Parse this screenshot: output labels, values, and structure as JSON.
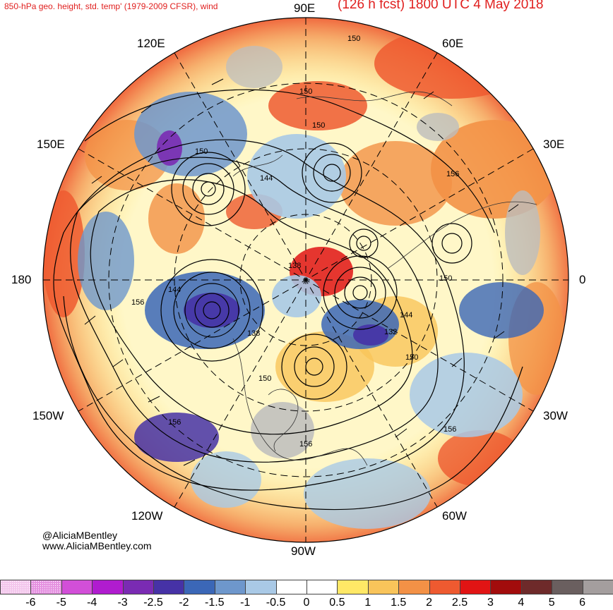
{
  "header": {
    "left_title": "850-hPa geo. height, std. temp' (1979-2009 CFSR), wind",
    "right_title": "(126 h fcst) 1800 UTC 4 May 2018"
  },
  "longitude_labels": {
    "n90e": "90E",
    "e60e": "60E",
    "e30e": "30E",
    "w0": "0",
    "w30w": "30W",
    "w60w": "60W",
    "s90w": "90W",
    "w120w": "120W",
    "w150w": "150W",
    "w180": "180",
    "w150e": "150E",
    "w120e": "120E"
  },
  "contour_labels": [
    "150",
    "150",
    "150",
    "150",
    "144",
    "144",
    "138",
    "138",
    "150",
    "156",
    "150",
    "144",
    "132",
    "150",
    "156",
    "156",
    "156",
    "156"
  ],
  "credits": {
    "handle": "@AliciaMBentley",
    "website": "www.AliciaMBentley.com"
  },
  "colorbar": {
    "ticks": [
      "-6",
      "-5",
      "-4",
      "-3",
      "-2.5",
      "-2",
      "-1.5",
      "-1",
      "-0.5",
      "0",
      "0.5",
      "1",
      "1.5",
      "2",
      "2.5",
      "3",
      "4",
      "5",
      "6"
    ],
    "colors": [
      "#f3c6ec",
      "#e591e0",
      "#d24fd8",
      "#b01ccf",
      "#7a2bb3",
      "#4632a6",
      "#3b67b7",
      "#6e97cc",
      "#a9c9e6",
      "#ffffff",
      "#ffffff",
      "#ffe866",
      "#f9c45a",
      "#f39146",
      "#ee5a30",
      "#e11414",
      "#a20c0c",
      "#6e2a2a",
      "#6a5f5f",
      "#a49e9e"
    ]
  },
  "colors": {
    "title": "#e0201f",
    "land_mask": "#bdbdbd"
  }
}
